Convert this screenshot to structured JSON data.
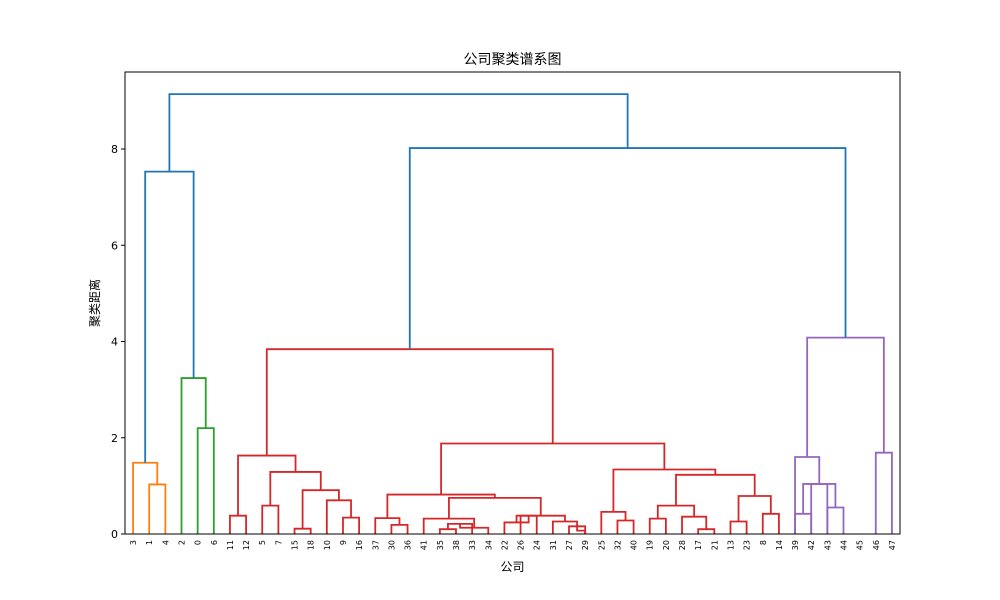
{
  "chart_data": {
    "type": "dendrogram",
    "title": "公司聚类谱系图",
    "xlabel": "公司",
    "ylabel": "聚类距离",
    "ylim": [
      0,
      9.6
    ],
    "yticks": [
      0,
      2,
      4,
      6,
      8
    ],
    "grid": false,
    "leaves": [
      "3",
      "1",
      "4",
      "2",
      "0",
      "6",
      "11",
      "12",
      "5",
      "7",
      "15",
      "18",
      "10",
      "9",
      "16",
      "37",
      "30",
      "36",
      "41",
      "35",
      "38",
      "33",
      "34",
      "22",
      "26",
      "24",
      "31",
      "27",
      "29",
      "25",
      "32",
      "40",
      "19",
      "20",
      "28",
      "17",
      "21",
      "13",
      "23",
      "8",
      "14",
      "39",
      "42",
      "43",
      "44",
      "45",
      "46",
      "47"
    ],
    "links": [
      {
        "left": {
          "leaf": 1
        },
        "right": {
          "leaf": 2
        },
        "height": 1.03,
        "color": "#ff7f0e"
      },
      {
        "left": {
          "leaf": 0
        },
        "right": {
          "link": 0
        },
        "height": 1.48,
        "color": "#ff7f0e"
      },
      {
        "left": {
          "leaf": 4
        },
        "right": {
          "leaf": 5
        },
        "height": 2.2,
        "color": "#2ca02c"
      },
      {
        "left": {
          "leaf": 3
        },
        "right": {
          "link": 2
        },
        "height": 3.24,
        "color": "#2ca02c"
      },
      {
        "left": {
          "link": 1
        },
        "right": {
          "link": 3
        },
        "height": 7.53,
        "color": "#1f77b4"
      },
      {
        "left": {
          "leaf": 6
        },
        "right": {
          "leaf": 7
        },
        "height": 0.38,
        "color": "#d62728"
      },
      {
        "left": {
          "leaf": 8
        },
        "right": {
          "leaf": 9
        },
        "height": 0.59,
        "color": "#d62728"
      },
      {
        "left": {
          "leaf": 10
        },
        "right": {
          "leaf": 11
        },
        "height": 0.11,
        "color": "#d62728"
      },
      {
        "left": {
          "leaf": 13
        },
        "right": {
          "leaf": 14
        },
        "height": 0.34,
        "color": "#d62728"
      },
      {
        "left": {
          "leaf": 12
        },
        "right": {
          "link": 8
        },
        "height": 0.7,
        "color": "#d62728"
      },
      {
        "left": {
          "link": 7
        },
        "right": {
          "link": 9
        },
        "height": 0.91,
        "color": "#d62728"
      },
      {
        "left": {
          "link": 6
        },
        "right": {
          "link": 10
        },
        "height": 1.29,
        "color": "#d62728"
      },
      {
        "left": {
          "link": 5
        },
        "right": {
          "link": 11
        },
        "height": 1.63,
        "color": "#d62728"
      },
      {
        "left": {
          "leaf": 16
        },
        "right": {
          "leaf": 17
        },
        "height": 0.19,
        "color": "#d62728"
      },
      {
        "left": {
          "leaf": 15
        },
        "right": {
          "link": 13
        },
        "height": 0.33,
        "color": "#d62728"
      },
      {
        "left": {
          "leaf": 19
        },
        "right": {
          "leaf": 20
        },
        "height": 0.1,
        "color": "#d62728"
      },
      {
        "left": {
          "link": 15
        },
        "right": {
          "leaf": 21
        },
        "height": 0.21,
        "color": "#d62728"
      },
      {
        "left": {
          "link": 16
        },
        "right": {
          "leaf": 22
        },
        "height": 0.13,
        "color": "#d62728"
      },
      {
        "left": {
          "leaf": 18
        },
        "right": {
          "link": 17
        },
        "height": 0.32,
        "color": "#d62728"
      },
      {
        "left": {
          "leaf": 24
        },
        "right": {
          "leaf": 25
        },
        "height": 0.38,
        "color": "#d62728"
      },
      {
        "left": {
          "leaf": 23
        },
        "right": {
          "link": 19
        },
        "height": 0.24,
        "color": "#d62728"
      },
      {
        "left": {
          "leaf": 27
        },
        "right": {
          "leaf": 28
        },
        "height": 0.16,
        "color": "#d62728"
      },
      {
        "left": {
          "link": 21
        },
        "right": {
          "leaf": 28
        },
        "height": 0.07,
        "color": "#d62728"
      },
      {
        "left": {
          "leaf": 26
        },
        "right": {
          "link": 21
        },
        "height": 0.26,
        "color": "#d62728"
      },
      {
        "left": {
          "link": 20
        },
        "right": {
          "link": 23
        },
        "height": 0.38,
        "color": "#d62728"
      },
      {
        "left": {
          "link": 18
        },
        "right": {
          "link": 24
        },
        "height": 0.75,
        "color": "#d62728"
      },
      {
        "left": {
          "link": 14
        },
        "right": {
          "link": 25
        },
        "height": 0.82,
        "color": "#d62728"
      },
      {
        "left": {
          "leaf": 30
        },
        "right": {
          "leaf": 31
        },
        "height": 0.28,
        "color": "#d62728"
      },
      {
        "left": {
          "leaf": 29
        },
        "right": {
          "link": 27
        },
        "height": 0.46,
        "color": "#d62728"
      },
      {
        "left": {
          "leaf": 32
        },
        "right": {
          "leaf": 33
        },
        "height": 0.32,
        "color": "#d62728"
      },
      {
        "left": {
          "leaf": 35
        },
        "right": {
          "leaf": 36
        },
        "height": 0.1,
        "color": "#d62728"
      },
      {
        "left": {
          "leaf": 34
        },
        "right": {
          "link": 30
        },
        "height": 0.36,
        "color": "#d62728"
      },
      {
        "left": {
          "link": 29
        },
        "right": {
          "link": 31
        },
        "height": 0.59,
        "color": "#d62728"
      },
      {
        "left": {
          "leaf": 37
        },
        "right": {
          "leaf": 38
        },
        "height": 0.26,
        "color": "#d62728"
      },
      {
        "left": {
          "leaf": 39
        },
        "right": {
          "leaf": 40
        },
        "height": 0.42,
        "color": "#d62728"
      },
      {
        "left": {
          "link": 33
        },
        "right": {
          "link": 34
        },
        "height": 0.79,
        "color": "#d62728"
      },
      {
        "left": {
          "link": 32
        },
        "right": {
          "link": 35
        },
        "height": 1.23,
        "color": "#d62728"
      },
      {
        "left": {
          "link": 28
        },
        "right": {
          "link": 36
        },
        "height": 1.34,
        "color": "#d62728"
      },
      {
        "left": {
          "link": 26
        },
        "right": {
          "link": 37
        },
        "height": 1.88,
        "color": "#d62728"
      },
      {
        "left": {
          "link": 12
        },
        "right": {
          "link": 38
        },
        "height": 3.84,
        "color": "#d62728"
      },
      {
        "left": {
          "leaf": 42
        },
        "right": {
          "leaf": 43
        },
        "height": 1.04,
        "color": "#9467bd"
      },
      {
        "left": {
          "leaf": 41
        },
        "right": {
          "leaf": 42
        },
        "height": 0.42,
        "color": "#9467bd"
      },
      {
        "left": {
          "leaf": 43
        },
        "right": {
          "leaf": 44
        },
        "height": 0.55,
        "color": "#9467bd"
      },
      {
        "left": {
          "link": 41
        },
        "right": {
          "link": 42
        },
        "height": 1.04,
        "color": "#9467bd"
      },
      {
        "left": {
          "leaf": 41
        },
        "right": {
          "link": 43
        },
        "height": 1.6,
        "color": "#9467bd"
      },
      {
        "left": {
          "leaf": 46
        },
        "right": {
          "leaf": 47
        },
        "height": 1.69,
        "color": "#9467bd"
      },
      {
        "left": {
          "link": 44
        },
        "right": {
          "link": 45
        },
        "height": 4.08,
        "color": "#9467bd"
      },
      {
        "left": {
          "link": 39
        },
        "right": {
          "link": 46
        },
        "height": 8.02,
        "color": "#1f77b4"
      },
      {
        "left": {
          "link": 4
        },
        "right": {
          "link": 47
        },
        "height": 9.14,
        "color": "#1f77b4"
      }
    ]
  }
}
